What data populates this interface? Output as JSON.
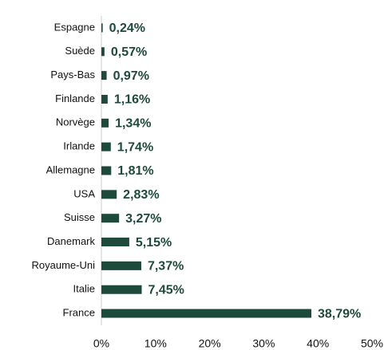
{
  "chart_data": {
    "type": "barh",
    "categories": [
      "Espagne",
      "Suède",
      "Pays-Bas",
      "Finlande",
      "Norvège",
      "Irlande",
      "Allemagne",
      "USA",
      "Suisse",
      "Danemark",
      "Royaume-Uni",
      "Italie",
      "France"
    ],
    "values": [
      0.24,
      0.57,
      0.97,
      1.16,
      1.34,
      1.74,
      1.81,
      2.83,
      3.27,
      5.15,
      7.37,
      7.45,
      38.79
    ],
    "value_labels": [
      "0,24%",
      "0,57%",
      "0,97%",
      "1,16%",
      "1,34%",
      "1,74%",
      "1,81%",
      "2,83%",
      "3,27%",
      "5,15%",
      "7,37%",
      "7,45%",
      "38,79%"
    ],
    "color": "#1d4a3a",
    "xlim": [
      0,
      50
    ],
    "xticks": [
      {
        "value": 0,
        "label": "0%"
      },
      {
        "value": 10,
        "label": "10%"
      },
      {
        "value": 20,
        "label": "20%"
      },
      {
        "value": 30,
        "label": "30%"
      },
      {
        "value": 40,
        "label": "40%"
      },
      {
        "value": 50,
        "label": "50%"
      }
    ]
  }
}
